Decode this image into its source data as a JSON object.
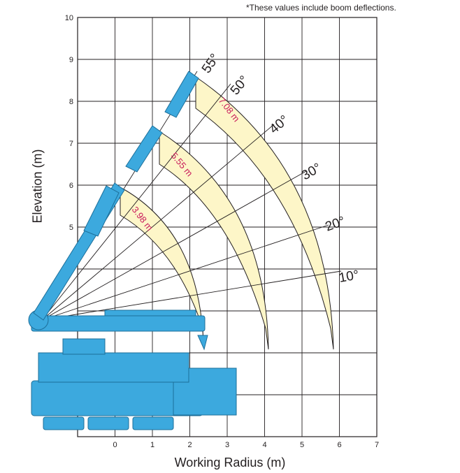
{
  "note": "*These values include boom deflections.",
  "chart_data": {
    "type": "diagram",
    "xlabel": "Working Radius (m)",
    "ylabel": "Elevation (m)",
    "xlim": [
      -1,
      7
    ],
    "ylim": [
      0,
      10
    ],
    "x_ticks": [
      "0",
      "1",
      "2",
      "3",
      "4",
      "5",
      "6",
      "7"
    ],
    "y_ticks": [
      "10",
      "9",
      "8",
      "7",
      "6",
      "5"
    ],
    "grid": true,
    "angle_labels": [
      "55°",
      "50°",
      "40°",
      "30°",
      "20°",
      "10°"
    ],
    "reach_labels": [
      "7.08 m",
      "5.55 m",
      "3.98 m"
    ],
    "colors": {
      "machine": "#3ca9de",
      "envelope": "#fdf6c8",
      "reach_text": "#c8185a"
    }
  }
}
